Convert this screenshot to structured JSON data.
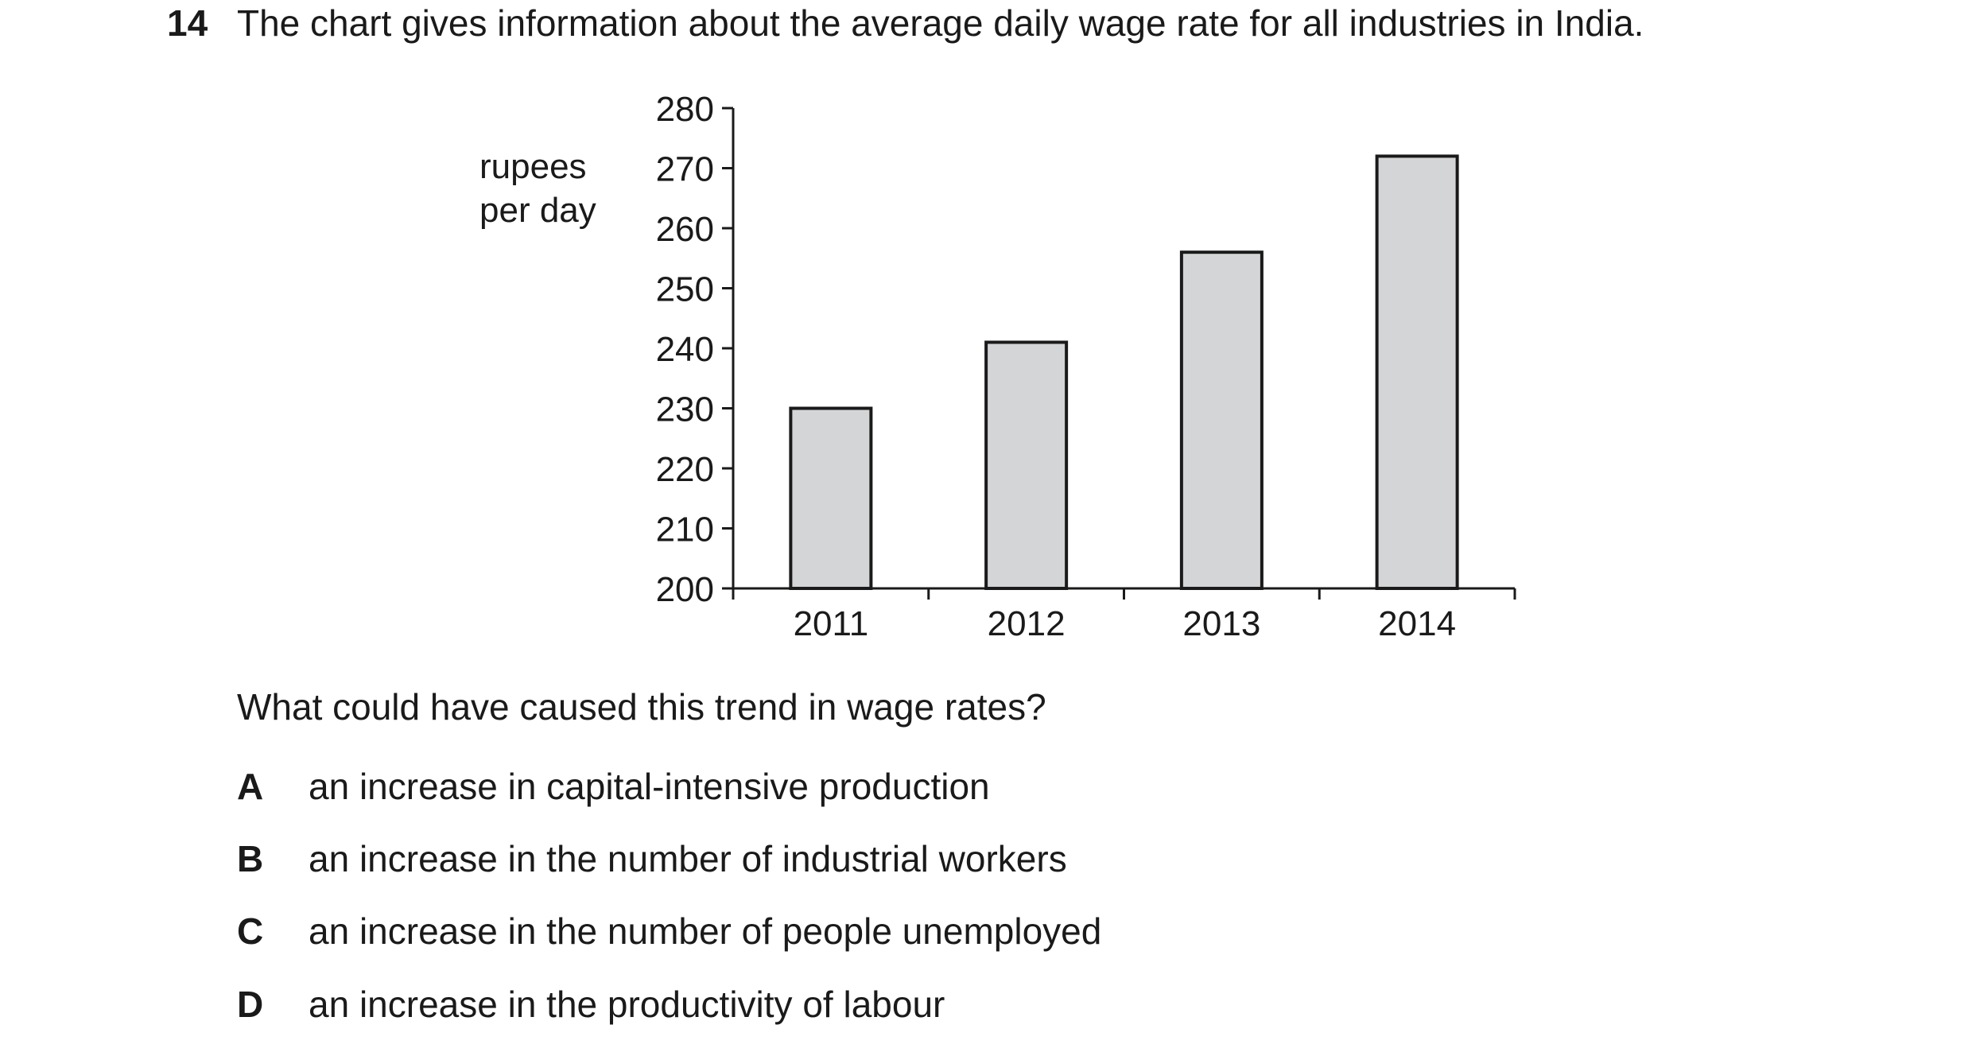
{
  "question": {
    "number": "14",
    "stem": "The chart gives information about the average daily wage rate for all industries in India.",
    "prompt": "What could have caused this trend in wage rates?",
    "options": [
      {
        "letter": "A",
        "text": "an increase in capital-intensive production"
      },
      {
        "letter": "B",
        "text": "an increase in the number of industrial workers"
      },
      {
        "letter": "C",
        "text": "an increase in the number of people unemployed"
      },
      {
        "letter": "D",
        "text": "an increase in the productivity of labour"
      }
    ]
  },
  "chart_data": {
    "type": "bar",
    "categories": [
      "2011",
      "2012",
      "2013",
      "2014"
    ],
    "values": [
      230,
      241,
      256,
      272
    ],
    "ylabel_lines": [
      "rupees",
      "per day"
    ],
    "ylim": [
      200,
      280
    ],
    "yticks": [
      200,
      210,
      220,
      230,
      240,
      250,
      260,
      270,
      280
    ],
    "grid": false,
    "bar_color": "#d4d5d7",
    "edge_color": "#1a1a1a"
  }
}
